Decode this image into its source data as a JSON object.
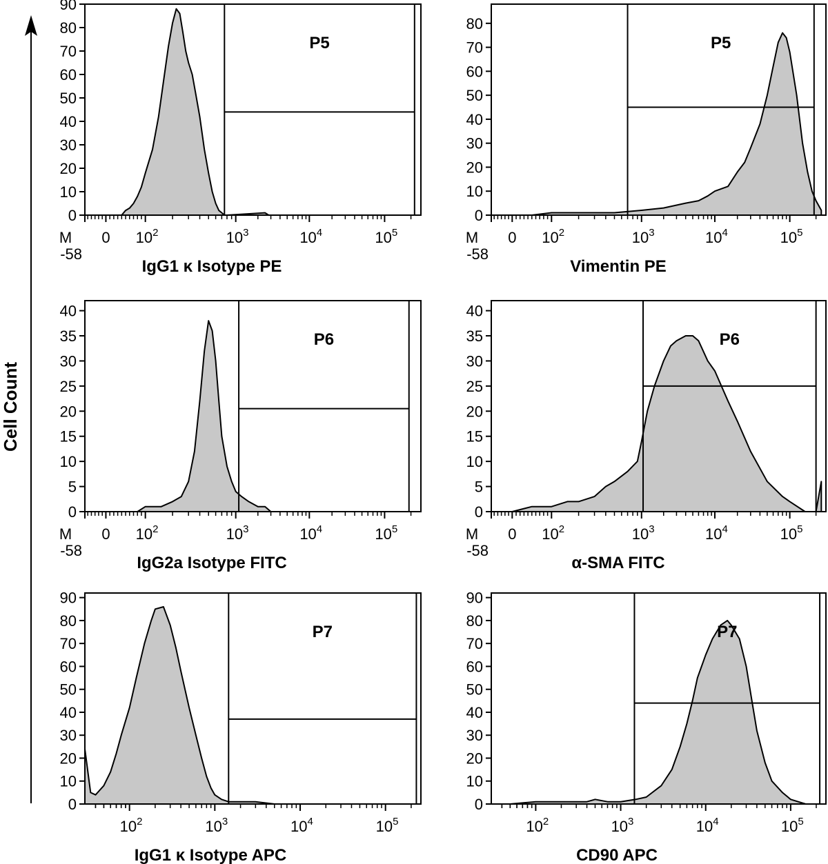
{
  "figure": {
    "ylabel": "Cell Count",
    "colors": {
      "fill": "#c8c8c8",
      "stroke": "#000000"
    }
  },
  "chart_data": [
    {
      "id": "p1",
      "type": "histogram",
      "title": "",
      "xlabel": "IgG1 κ Isotype PE",
      "ylabel": "Cell Count",
      "gate": "P5",
      "ylim": [
        0,
        90
      ],
      "yticks": [
        0,
        10,
        20,
        30,
        40,
        50,
        60,
        70,
        80,
        90
      ],
      "xticks": [
        {
          "t": "M",
          "v": -58
        },
        {
          "t": "0",
          "v": 0
        },
        {
          "t": "10",
          "s": "2",
          "v": 100
        },
        {
          "t": "10",
          "s": "3",
          "v": 1000
        },
        {
          "t": "10",
          "s": "4",
          "v": 10000
        },
        {
          "t": "10",
          "s": "5",
          "v": 100000
        }
      ],
      "xmin_label": "-58",
      "gate_x": 750,
      "gate_right": 220000,
      "gate_bar_y": 44,
      "series": [
        {
          "name": "events",
          "x": [
            40,
            50,
            60,
            70,
            80,
            90,
            100,
            120,
            140,
            160,
            180,
            200,
            220,
            240,
            260,
            280,
            300,
            330,
            360,
            400,
            450,
            500,
            550,
            600,
            650,
            700,
            750,
            800,
            2500,
            2800
          ],
          "y": [
            0,
            2,
            3,
            5,
            8,
            12,
            18,
            28,
            42,
            58,
            72,
            82,
            88,
            86,
            78,
            70,
            65,
            60,
            52,
            42,
            28,
            18,
            10,
            5,
            2,
            1,
            0,
            0,
            1,
            0
          ]
        }
      ]
    },
    {
      "id": "p2",
      "type": "histogram",
      "title": "",
      "xlabel": "Vimentin PE",
      "ylabel": "Cell Count",
      "gate": "P5",
      "ylim": [
        0,
        88
      ],
      "yticks": [
        0,
        10,
        20,
        30,
        40,
        50,
        60,
        70,
        80
      ],
      "xticks": [
        {
          "t": "M",
          "v": -58
        },
        {
          "t": "0",
          "v": 0
        },
        {
          "t": "10",
          "s": "2",
          "v": 100
        },
        {
          "t": "10",
          "s": "3",
          "v": 1000
        },
        {
          "t": "10",
          "s": "4",
          "v": 10000
        },
        {
          "t": "10",
          "s": "5",
          "v": 100000
        }
      ],
      "xmin_label": "-58",
      "gate_x": 700,
      "gate_right": 190000,
      "gate_bar_y": 45,
      "series": [
        {
          "name": "events",
          "x": [
            -58,
            0,
            50,
            100,
            200,
            500,
            1000,
            2000,
            4000,
            6000,
            8000,
            10000,
            15000,
            20000,
            25000,
            30000,
            40000,
            50000,
            60000,
            70000,
            80000,
            90000,
            100000,
            120000,
            140000,
            160000,
            180000,
            200000,
            230000
          ],
          "y": [
            0,
            0,
            0,
            1,
            1,
            1,
            2,
            3,
            5,
            6,
            8,
            10,
            12,
            18,
            22,
            28,
            38,
            50,
            62,
            72,
            76,
            74,
            68,
            50,
            30,
            18,
            10,
            6,
            2
          ]
        }
      ]
    },
    {
      "id": "p3",
      "type": "histogram",
      "title": "",
      "xlabel": "IgG2a Isotype FITC",
      "ylabel": "Cell Count",
      "gate": "P6",
      "ylim": [
        0,
        42
      ],
      "yticks": [
        0,
        5,
        10,
        15,
        20,
        25,
        30,
        35,
        40
      ],
      "xticks": [
        {
          "t": "M",
          "v": -58
        },
        {
          "t": "0",
          "v": 0
        },
        {
          "t": "10",
          "s": "2",
          "v": 100
        },
        {
          "t": "10",
          "s": "3",
          "v": 1000
        },
        {
          "t": "10",
          "s": "4",
          "v": 10000
        },
        {
          "t": "10",
          "s": "5",
          "v": 100000
        }
      ],
      "xmin_label": "-58",
      "gate_x": 1100,
      "gate_right": 190000,
      "gate_bar_y": 20.5,
      "series": [
        {
          "name": "events",
          "x": [
            80,
            100,
            150,
            200,
            250,
            300,
            350,
            400,
            450,
            500,
            550,
            600,
            650,
            700,
            800,
            900,
            1000,
            1200,
            1500,
            2000,
            2500,
            3000,
            4000,
            5000
          ],
          "y": [
            0,
            1,
            1,
            2,
            3,
            6,
            12,
            22,
            32,
            38,
            36,
            30,
            22,
            15,
            9,
            6,
            4,
            3,
            2,
            1,
            1,
            0,
            0,
            0
          ]
        }
      ]
    },
    {
      "id": "p4",
      "type": "histogram",
      "title": "",
      "xlabel": "α-SMA FITC",
      "ylabel": "Cell Count",
      "gate": "P6",
      "ylim": [
        0,
        42
      ],
      "yticks": [
        0,
        5,
        10,
        15,
        20,
        25,
        30,
        35,
        40
      ],
      "xticks": [
        {
          "t": "M",
          "v": -58
        },
        {
          "t": "0",
          "v": 0
        },
        {
          "t": "10",
          "s": "2",
          "v": 100
        },
        {
          "t": "10",
          "s": "3",
          "v": 1000
        },
        {
          "t": "10",
          "s": "4",
          "v": 10000
        },
        {
          "t": "10",
          "s": "5",
          "v": 100000
        }
      ],
      "xmin_label": "-58",
      "gate_x": 1050,
      "gate_right": 200000,
      "gate_bar_y": 25,
      "series": [
        {
          "name": "events",
          "x": [
            -58,
            0,
            50,
            100,
            150,
            200,
            300,
            400,
            500,
            700,
            900,
            1000,
            1200,
            1500,
            2000,
            2500,
            3000,
            4000,
            5000,
            6000,
            8000,
            10000,
            15000,
            20000,
            30000,
            50000,
            80000,
            100000,
            150000,
            200000,
            230000
          ],
          "y": [
            0,
            0,
            1,
            1,
            2,
            2,
            3,
            5,
            6,
            8,
            10,
            14,
            20,
            25,
            30,
            33,
            34,
            35,
            35,
            34,
            30,
            28,
            22,
            18,
            12,
            6,
            3,
            2,
            0,
            0,
            6
          ]
        }
      ]
    },
    {
      "id": "p5",
      "type": "histogram",
      "title": "",
      "xlabel": "IgG1 κ Isotype APC",
      "ylabel": "Cell Count",
      "gate": "P7",
      "ylim": [
        0,
        92
      ],
      "yticks": [
        0,
        10,
        20,
        30,
        40,
        50,
        60,
        70,
        80,
        90
      ],
      "xticks": [
        {
          "t": "10",
          "s": "2",
          "v": 100
        },
        {
          "t": "10",
          "s": "3",
          "v": 1000
        },
        {
          "t": "10",
          "s": "4",
          "v": 10000
        },
        {
          "t": "10",
          "s": "5",
          "v": 100000
        }
      ],
      "xmin_label": "",
      "gate_x": 1450,
      "gate_right": 230000,
      "gate_bar_y": 37,
      "series": [
        {
          "name": "events",
          "x": [
            30,
            35,
            40,
            50,
            60,
            70,
            80,
            100,
            120,
            150,
            180,
            200,
            250,
            300,
            350,
            400,
            500,
            600,
            700,
            800,
            900,
            1000,
            1200,
            1450,
            2000,
            3000,
            5000,
            10000,
            50000,
            100000
          ],
          "y": [
            24,
            5,
            4,
            8,
            14,
            22,
            30,
            42,
            55,
            70,
            80,
            85,
            86,
            78,
            68,
            58,
            42,
            30,
            20,
            12,
            7,
            4,
            2,
            1,
            1,
            1,
            0,
            0,
            0,
            0
          ]
        }
      ]
    },
    {
      "id": "p6",
      "type": "histogram",
      "title": "",
      "xlabel": "CD90 APC",
      "ylabel": "Cell Count",
      "gate": "P7",
      "ylim": [
        0,
        92
      ],
      "yticks": [
        0,
        10,
        20,
        30,
        40,
        50,
        60,
        70,
        80,
        90
      ],
      "xticks": [
        {
          "t": "10",
          "s": "2",
          "v": 100
        },
        {
          "t": "10",
          "s": "3",
          "v": 1000
        },
        {
          "t": "10",
          "s": "4",
          "v": 10000
        },
        {
          "t": "10",
          "s": "5",
          "v": 100000
        }
      ],
      "xmin_label": "",
      "gate_x": 1450,
      "gate_right": 220000,
      "gate_bar_y": 44,
      "series": [
        {
          "name": "events",
          "x": [
            30,
            50,
            100,
            200,
            400,
            500,
            700,
            1000,
            1500,
            2000,
            3000,
            4000,
            5000,
            6000,
            7000,
            8000,
            10000,
            12000,
            15000,
            18000,
            20000,
            25000,
            30000,
            35000,
            40000,
            50000,
            60000,
            80000,
            100000,
            150000
          ],
          "y": [
            0,
            0,
            1,
            1,
            1,
            2,
            1,
            1,
            2,
            3,
            8,
            15,
            25,
            35,
            45,
            55,
            65,
            72,
            78,
            80,
            78,
            72,
            60,
            45,
            32,
            18,
            10,
            5,
            2,
            0
          ]
        }
      ]
    }
  ]
}
